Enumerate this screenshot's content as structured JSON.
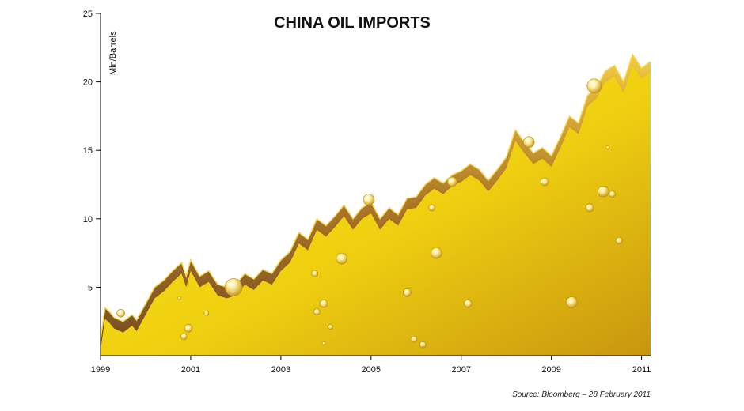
{
  "chart_data": {
    "type": "area",
    "title": "CHINA OIL IMPORTS",
    "ylabel": "Mln/Barrels",
    "xlabel": "",
    "source": "Source: Bloomberg – 28 February 2011",
    "xlim": [
      1999.0,
      2011.2
    ],
    "ylim": [
      0,
      25
    ],
    "x_ticks": [
      "1999",
      "2001",
      "2003",
      "2005",
      "2007",
      "2009",
      "2011"
    ],
    "y_ticks": [
      "5",
      "10",
      "15",
      "20",
      "25"
    ],
    "grid": false,
    "legend": "none",
    "colors": {
      "fill_light": "#f7e21a",
      "fill_dark": "#c8960f",
      "ridge": "#8a5a1c"
    },
    "series": [
      {
        "x": [
          1999.0,
          1999.1,
          1999.2,
          1999.3,
          1999.5,
          1999.7,
          1999.8,
          2000.0,
          2000.2,
          2000.4,
          2000.6,
          2000.8,
          2000.9,
          2001.0,
          2001.2,
          2001.4,
          2001.6,
          2001.8,
          2002.0,
          2002.2,
          2002.4,
          2002.6,
          2002.8,
          2003.0,
          2003.2,
          2003.4,
          2003.6,
          2003.8,
          2004.0,
          2004.2,
          2004.4,
          2004.6,
          2004.8,
          2005.0,
          2005.2,
          2005.4,
          2005.6,
          2005.8,
          2006.0,
          2006.2,
          2006.4,
          2006.6,
          2006.8,
          2007.0,
          2007.2,
          2007.4,
          2007.6,
          2007.8,
          2008.0,
          2008.2,
          2008.4,
          2008.6,
          2008.8,
          2009.0,
          2009.2,
          2009.4,
          2009.6,
          2009.8,
          2010.0,
          2010.2,
          2010.4,
          2010.6,
          2010.8,
          2011.0,
          2011.2
        ],
        "values": [
          1.2,
          3.5,
          3.2,
          2.8,
          2.5,
          3.0,
          2.6,
          3.8,
          5.0,
          5.5,
          6.2,
          6.8,
          5.8,
          7.0,
          5.8,
          6.2,
          5.2,
          5.0,
          5.2,
          6.0,
          5.6,
          6.3,
          6.0,
          7.0,
          7.6,
          9.0,
          8.5,
          10.0,
          9.5,
          10.2,
          11.0,
          10.0,
          10.8,
          11.2,
          10.0,
          10.8,
          10.3,
          11.5,
          11.6,
          12.5,
          13.0,
          12.6,
          13.2,
          13.5,
          14.0,
          13.6,
          12.8,
          13.6,
          14.5,
          16.5,
          15.6,
          14.8,
          15.2,
          14.6,
          16.0,
          17.5,
          17.0,
          19.0,
          19.6,
          20.8,
          21.2,
          20.0,
          22.0,
          21.0,
          21.5
        ]
      }
    ],
    "droplets": [
      {
        "x": 1999.45,
        "y": 3.1,
        "r": 5
      },
      {
        "x": 2000.75,
        "y": 4.2,
        "r": 2
      },
      {
        "x": 2000.85,
        "y": 1.4,
        "r": 4
      },
      {
        "x": 2000.95,
        "y": 2.0,
        "r": 5
      },
      {
        "x": 2001.35,
        "y": 3.1,
        "r": 3
      },
      {
        "x": 2001.95,
        "y": 5.0,
        "r": 11
      },
      {
        "x": 2003.75,
        "y": 6.0,
        "r": 4
      },
      {
        "x": 2003.8,
        "y": 3.2,
        "r": 4
      },
      {
        "x": 2003.95,
        "y": 3.8,
        "r": 5
      },
      {
        "x": 2003.95,
        "y": 0.9,
        "r": 2
      },
      {
        "x": 2004.1,
        "y": 2.1,
        "r": 3
      },
      {
        "x": 2004.35,
        "y": 7.1,
        "r": 7
      },
      {
        "x": 2004.95,
        "y": 11.4,
        "r": 7
      },
      {
        "x": 2005.8,
        "y": 4.6,
        "r": 5
      },
      {
        "x": 2005.95,
        "y": 1.2,
        "r": 4
      },
      {
        "x": 2006.15,
        "y": 0.8,
        "r": 4
      },
      {
        "x": 2006.35,
        "y": 10.8,
        "r": 4
      },
      {
        "x": 2006.45,
        "y": 7.5,
        "r": 7
      },
      {
        "x": 2006.8,
        "y": 12.7,
        "r": 6
      },
      {
        "x": 2007.15,
        "y": 3.8,
        "r": 5
      },
      {
        "x": 2008.5,
        "y": 15.6,
        "r": 7
      },
      {
        "x": 2008.85,
        "y": 12.7,
        "r": 5
      },
      {
        "x": 2009.45,
        "y": 3.9,
        "r": 7
      },
      {
        "x": 2009.85,
        "y": 10.8,
        "r": 5
      },
      {
        "x": 2009.95,
        "y": 19.7,
        "r": 9
      },
      {
        "x": 2010.15,
        "y": 12.0,
        "r": 7
      },
      {
        "x": 2010.25,
        "y": 15.2,
        "r": 2
      },
      {
        "x": 2010.35,
        "y": 11.8,
        "r": 4
      },
      {
        "x": 2010.5,
        "y": 8.4,
        "r": 4
      }
    ]
  }
}
